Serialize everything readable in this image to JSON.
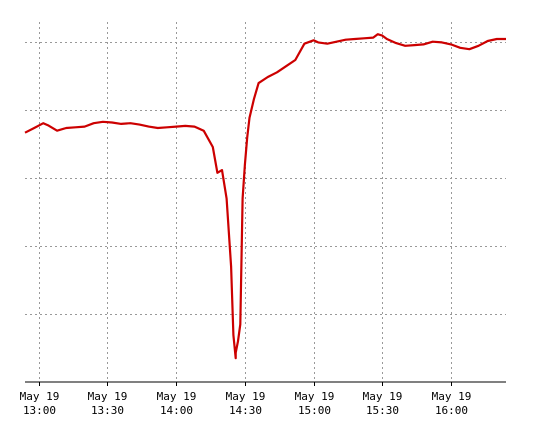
{
  "chart_data": {
    "type": "line",
    "title": "",
    "xlabel": "",
    "ylabel": "",
    "grid": true,
    "legend": "none",
    "colors": {
      "line": "#cc0000",
      "grid": "#999999",
      "axis": "#000000",
      "background": "#ffffff"
    },
    "xlim": [
      "12:54",
      "16:24"
    ],
    "ylim": [
      0,
      5.3
    ],
    "x_ticks": [
      {
        "value": "13:00",
        "date": "May 19",
        "time": "13:00"
      },
      {
        "value": "13:30",
        "date": "May 19",
        "time": "13:30"
      },
      {
        "value": "14:00",
        "date": "May 19",
        "time": "14:00"
      },
      {
        "value": "14:30",
        "date": "May 19",
        "time": "14:30"
      },
      {
        "value": "15:00",
        "date": "May 19",
        "time": "15:00"
      },
      {
        "value": "15:30",
        "date": "May 19",
        "time": "15:30"
      },
      {
        "value": "16:00",
        "date": "May 19",
        "time": "16:00"
      }
    ],
    "y_gridlines": [
      1,
      2,
      3,
      4,
      5
    ],
    "series": [
      {
        "x": [
          "12:54",
          "12:58",
          "13:02",
          "13:04",
          "13:08",
          "13:12",
          "13:16",
          "13:20",
          "13:24",
          "13:28",
          "13:32",
          "13:36",
          "13:40",
          "13:44",
          "13:48",
          "13:52",
          "13:56",
          "14:00",
          "14:04",
          "14:08",
          "14:12",
          "14:16",
          "14:18",
          "14:20",
          "14:22",
          "14:24",
          "14:25",
          "14:26",
          "14:26",
          "14:27",
          "14:28",
          "14:29",
          "14:30",
          "14:31",
          "14:32",
          "14:34",
          "14:36",
          "14:40",
          "14:44",
          "14:48",
          "14:52",
          "14:56",
          "15:00",
          "15:02",
          "15:04",
          "15:06",
          "15:10",
          "15:14",
          "15:18",
          "15:22",
          "15:26",
          "15:28",
          "15:30",
          "15:32",
          "15:36",
          "15:40",
          "15:44",
          "15:48",
          "15:52",
          "15:56",
          "16:00",
          "16:04",
          "16:08",
          "16:12",
          "16:16",
          "16:20",
          "16:24"
        ],
        "y": [
          3.67,
          3.74,
          3.81,
          3.78,
          3.7,
          3.74,
          3.75,
          3.76,
          3.81,
          3.83,
          3.82,
          3.8,
          3.81,
          3.79,
          3.76,
          3.74,
          3.75,
          3.76,
          3.77,
          3.76,
          3.7,
          3.46,
          3.08,
          3.12,
          2.7,
          1.7,
          0.69,
          0.35,
          0.43,
          0.6,
          0.85,
          2.7,
          3.2,
          3.6,
          3.89,
          4.17,
          4.4,
          4.49,
          4.56,
          4.65,
          4.74,
          4.98,
          5.03,
          5.0,
          4.99,
          4.98,
          5.01,
          5.04,
          5.05,
          5.06,
          5.07,
          5.12,
          5.1,
          5.05,
          4.99,
          4.95,
          4.96,
          4.97,
          5.01,
          5.0,
          4.97,
          4.92,
          4.9,
          4.95,
          5.02,
          5.05,
          5.05
        ]
      }
    ]
  }
}
